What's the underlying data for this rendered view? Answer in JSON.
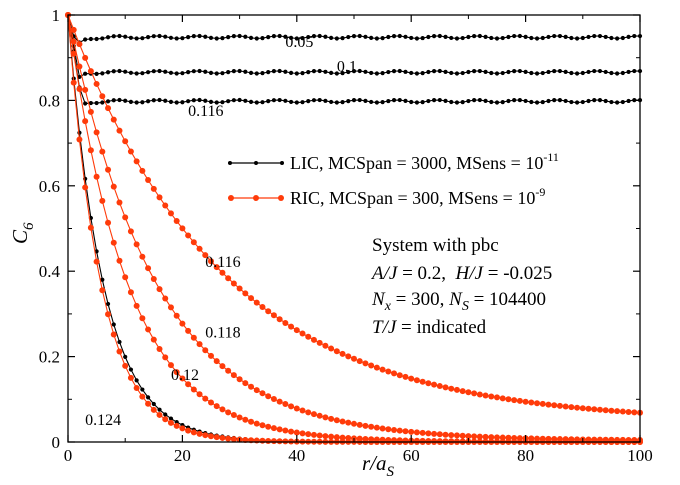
{
  "chart_data": {
    "type": "line",
    "title": "",
    "xlabel": "r/a",
    "xlabel_sub": "S",
    "ylabel": "C",
    "ylabel_sub": "6",
    "xlim": [
      0,
      100
    ],
    "ylim": [
      0,
      1
    ],
    "xticks": [
      0,
      20,
      40,
      60,
      80,
      100
    ],
    "yticks": [
      0,
      0.2,
      0.4,
      0.6,
      0.8,
      1
    ],
    "xtick_labels": [
      "0",
      "20",
      "40",
      "60",
      "80",
      "100"
    ],
    "ytick_labels": [
      "0",
      "0.2",
      "0.4",
      "0.6",
      "0.8",
      "1"
    ],
    "grid": false,
    "legend_position": "right-center",
    "legend": [
      {
        "text": "LIC, MCSpan = 3000, MSens = 10",
        "sup": "-11",
        "color": "#000000"
      },
      {
        "text": "RIC, MCSpan = 300, MSens = 10",
        "sup": "-9",
        "color": "#ff3b0a"
      }
    ],
    "info_box": {
      "title": "System with pbc",
      "line1_a": "A/J",
      "line1_b": " = 0.2,  ",
      "line1_c": "H/J",
      "line1_d": " = -0.025",
      "line2_a": "N",
      "line2_a_sub": "x",
      "line2_b": " = 300, ",
      "line2_c": "N",
      "line2_c_sub": "S",
      "line2_d": " = 104400",
      "line3_a": "T/J",
      "line3_b": " = indicated"
    },
    "series": [
      {
        "family": "LIC",
        "label": "0.05",
        "color": "#000000",
        "model": "plateau",
        "plateau": 0.948,
        "dip": 0.925,
        "dip_x": 1.5
      },
      {
        "family": "LIC",
        "label": "0.1",
        "color": "#000000",
        "model": "plateau",
        "plateau": 0.866,
        "dip": 0.855,
        "dip_x": 2
      },
      {
        "family": "LIC",
        "label": "0.116",
        "color": "#000000",
        "model": "plateau",
        "plateau": 0.798,
        "dip": 0.788,
        "dip_x": 2.5
      },
      {
        "family": "LIC",
        "label": "0.124",
        "color": "#000000",
        "model": "decay",
        "amp": 0.97,
        "xi": 6.2,
        "offset": 0.0
      },
      {
        "family": "RIC",
        "label": "0.116",
        "color": "#ff3b0a",
        "model": "decay",
        "amp": 0.65,
        "xi": 27,
        "offset": 0.045
      },
      {
        "family": "RIC",
        "label": "0.118",
        "color": "#ff3b0a",
        "model": "decay",
        "amp": 0.78,
        "xi": 15.5,
        "offset": 0.003
      },
      {
        "family": "RIC",
        "label": "0.12",
        "color": "#ff3b0a",
        "model": "decay",
        "amp": 0.85,
        "xi": 10.5,
        "offset": 0.0
      },
      {
        "family": "RIC",
        "label": "0.124",
        "color": "#ff3b0a",
        "model": "decay",
        "amp": 0.97,
        "xi": 5.8,
        "offset": 0.0
      }
    ],
    "annotations": [
      {
        "text": "0.05",
        "x": 38,
        "y": 0.925
      },
      {
        "text": "0.1",
        "x": 47,
        "y": 0.868
      },
      {
        "text": "0.116",
        "x": 21,
        "y": 0.763
      },
      {
        "text": "0.116",
        "x": 24,
        "y": 0.41
      },
      {
        "text": "0.118",
        "x": 24,
        "y": 0.245
      },
      {
        "text": "0.12",
        "x": 18,
        "y": 0.145
      },
      {
        "text": "0.124",
        "x": 3,
        "y": 0.04
      }
    ]
  }
}
